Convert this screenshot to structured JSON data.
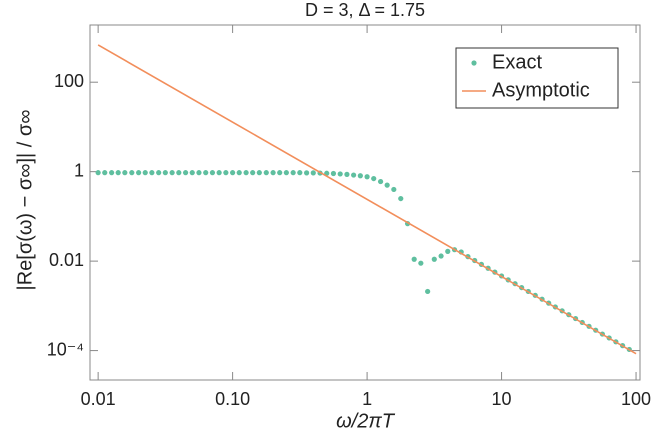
{
  "chart_data": {
    "type": "scatter",
    "title": "D = 3, Δ = 1.75",
    "xlabel": "ω/2πT",
    "ylabel": "|Re[σ(ω) − σ∞]| / σ∞",
    "xscale": "log",
    "yscale": "log",
    "xlim": [
      0.0087,
      107
    ],
    "ylim": [
      2.2e-05,
      1900
    ],
    "xticks": [
      0.01,
      {
        "value": 0.1,
        "label": "0.10"
      },
      1,
      10,
      100
    ],
    "yticks": [
      {
        "value": 0.0001,
        "label": "10⁻⁴"
      },
      0.01,
      1,
      100
    ],
    "legend": "upper right",
    "series": [
      {
        "name": "Exact",
        "style": "points",
        "color": "#5fbf9f",
        "x": [
          0.01,
          0.0112,
          0.0126,
          0.0141,
          0.0158,
          0.0178,
          0.02,
          0.0224,
          0.0251,
          0.0282,
          0.0316,
          0.0355,
          0.0398,
          0.0447,
          0.0501,
          0.0562,
          0.0631,
          0.0708,
          0.0794,
          0.0891,
          0.1,
          0.112,
          0.126,
          0.141,
          0.158,
          0.178,
          0.2,
          0.224,
          0.251,
          0.282,
          0.316,
          0.355,
          0.398,
          0.447,
          0.501,
          0.562,
          0.631,
          0.708,
          0.794,
          0.891,
          1,
          1.12,
          1.26,
          1.41,
          1.58,
          1.78,
          2,
          2.24,
          2.51,
          2.82,
          3.16,
          3.55,
          3.98,
          4.47,
          5.01,
          5.62,
          6.31,
          7.08,
          7.94,
          8.91,
          10,
          11.2,
          12.6,
          14.1,
          15.8,
          17.8,
          20,
          22.4,
          25.1,
          28.2,
          31.6,
          35.5,
          39.8,
          44.7,
          50.1,
          56.2,
          63.1,
          70.8,
          79.4,
          89.1
        ],
        "values": [
          0.95,
          0.95,
          0.95,
          0.95,
          0.95,
          0.95,
          0.95,
          0.95,
          0.95,
          0.95,
          0.95,
          0.95,
          0.95,
          0.95,
          0.95,
          0.95,
          0.95,
          0.95,
          0.95,
          0.95,
          0.95,
          0.95,
          0.95,
          0.95,
          0.95,
          0.95,
          0.95,
          0.95,
          0.95,
          0.95,
          0.95,
          0.94,
          0.94,
          0.93,
          0.92,
          0.91,
          0.89,
          0.87,
          0.84,
          0.81,
          0.77,
          0.7,
          0.6,
          0.5,
          0.4,
          0.25,
          0.069,
          0.011,
          0.009,
          0.0021,
          0.011,
          0.013,
          0.0165,
          0.018,
          0.016,
          0.0126,
          0.01033,
          0.00846,
          0.00693,
          0.00568,
          0.00466,
          0.00381,
          0.00313,
          0.00256,
          0.0021,
          0.00172,
          0.00141,
          0.00115,
          0.000946,
          0.000775,
          0.000635,
          0.00052,
          0.000426,
          0.000349,
          0.000286,
          0.000234,
          0.000192,
          0.000157,
          0.000129,
          0.000106
        ]
      },
      {
        "name": "Asymptotic",
        "style": "line",
        "color": "#f28e5b",
        "x": [
          0.01,
          100
        ],
        "values": [
          680,
          8.5e-05
        ]
      }
    ]
  }
}
